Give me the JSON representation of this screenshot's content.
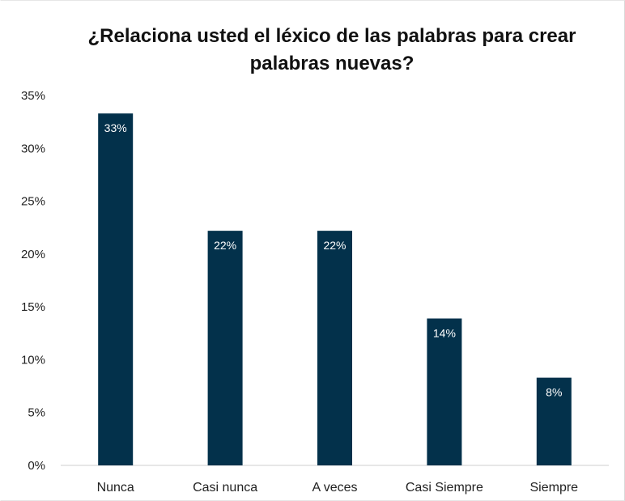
{
  "chart_data": {
    "type": "bar",
    "title": "¿Relaciona usted el léxico de las palabras para crear palabras nuevas?",
    "categories": [
      "Nunca",
      "Casi nunca",
      "A veces",
      "Casi Siempre",
      "Siempre"
    ],
    "values": [
      33.3,
      22.2,
      22.2,
      13.9,
      8.3
    ],
    "data_labels": [
      "33%",
      "22%",
      "22%",
      "14%",
      "8%"
    ],
    "y_ticks": [
      0,
      5,
      10,
      15,
      20,
      25,
      30,
      35
    ],
    "y_tick_labels": [
      "0%",
      "5%",
      "10%",
      "15%",
      "20%",
      "25%",
      "30%",
      "35%"
    ],
    "ylim": [
      0,
      35
    ],
    "xlabel": "",
    "ylabel": "",
    "grid": false,
    "legend": "none",
    "bar_color": "#03314b"
  }
}
